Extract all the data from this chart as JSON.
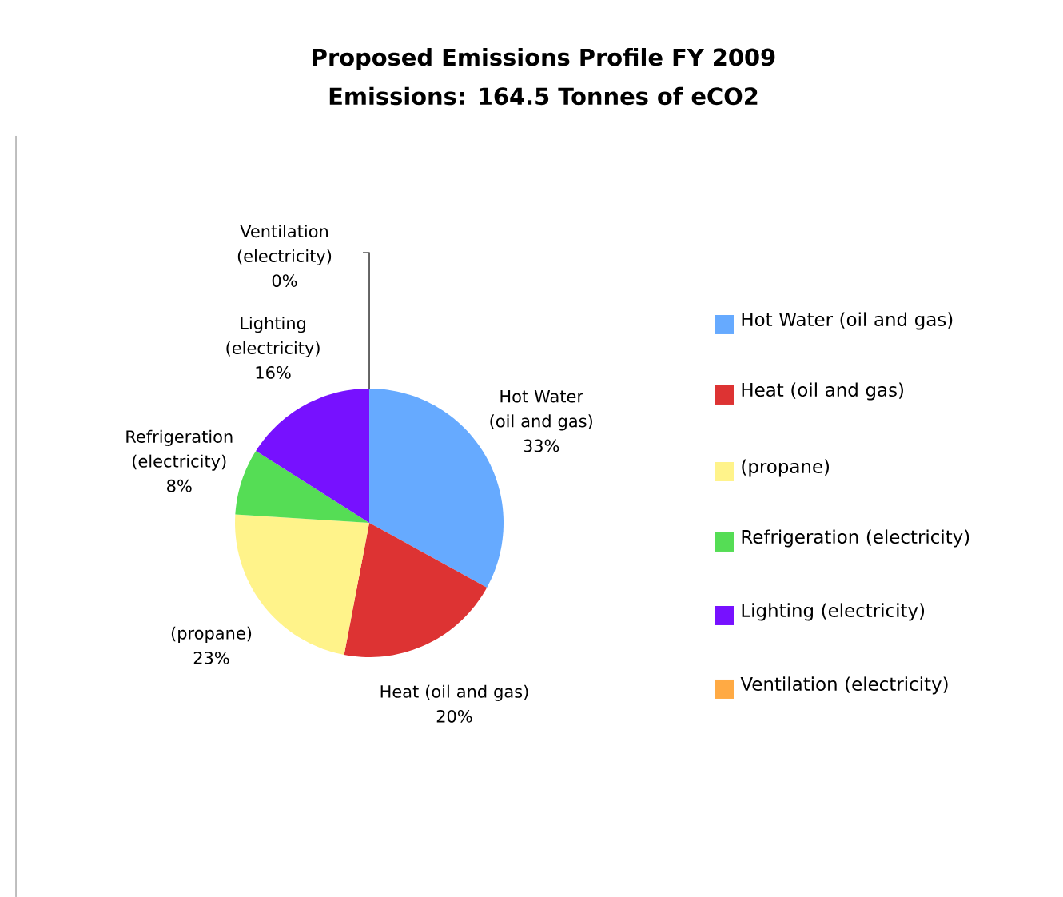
{
  "chart_data": {
    "type": "pie",
    "title": "Proposed Emissions Profile FY 2009",
    "subtitle": "Emissions: 164.5 Tonnes of eCO2",
    "categories": [
      "Hot Water (oil and gas)",
      "Heat (oil and gas)",
      "(propane)",
      "Refrigeration (electricity)",
      "Lighting (electricity)",
      "Ventilation (electricity)"
    ],
    "values": [
      33,
      20,
      23,
      8,
      16,
      0
    ],
    "value_labels": [
      "33%",
      "20%",
      "23%",
      "8%",
      "16%",
      "0%"
    ],
    "colors": [
      "#66aaff",
      "#dd3333",
      "#fff38a",
      "#55dd55",
      "#7711ff",
      "#ffaa44"
    ],
    "legend": "right"
  }
}
